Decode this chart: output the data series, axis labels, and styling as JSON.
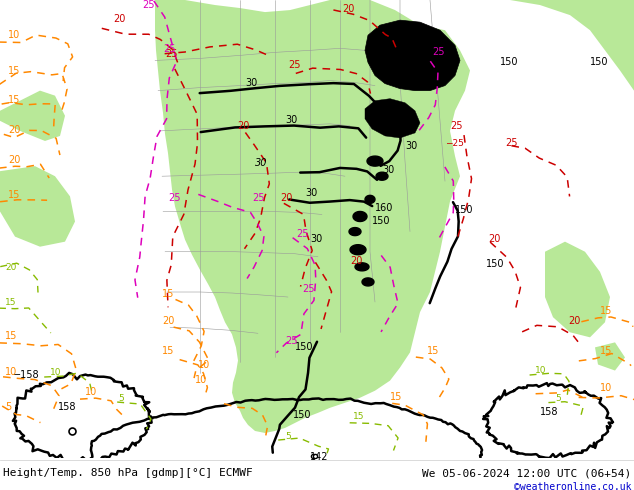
{
  "title_left": "Height/Temp. 850 hPa [gdmp][°C] ECMWF",
  "title_right": "We 05-06-2024 12:00 UTC (06+54)",
  "credit": "©weatheronline.co.uk",
  "fig_width": 6.34,
  "fig_height": 4.9,
  "dpi": 100,
  "bg_color": "#ffffff",
  "ocean_color": "#e8e8e0",
  "green_fill": "#b8e898",
  "border_color": "#999999",
  "black_contour_color": "#000000",
  "red_contour_color": "#cc0000",
  "orange_contour_color": "#ff8800",
  "magenta_contour_color": "#dd00bb",
  "green_label_color": "#88bb00",
  "bottom_text_color": "#000000",
  "credit_color": "#0000cc",
  "font_size_bottom": 8,
  "font_size_label": 7
}
